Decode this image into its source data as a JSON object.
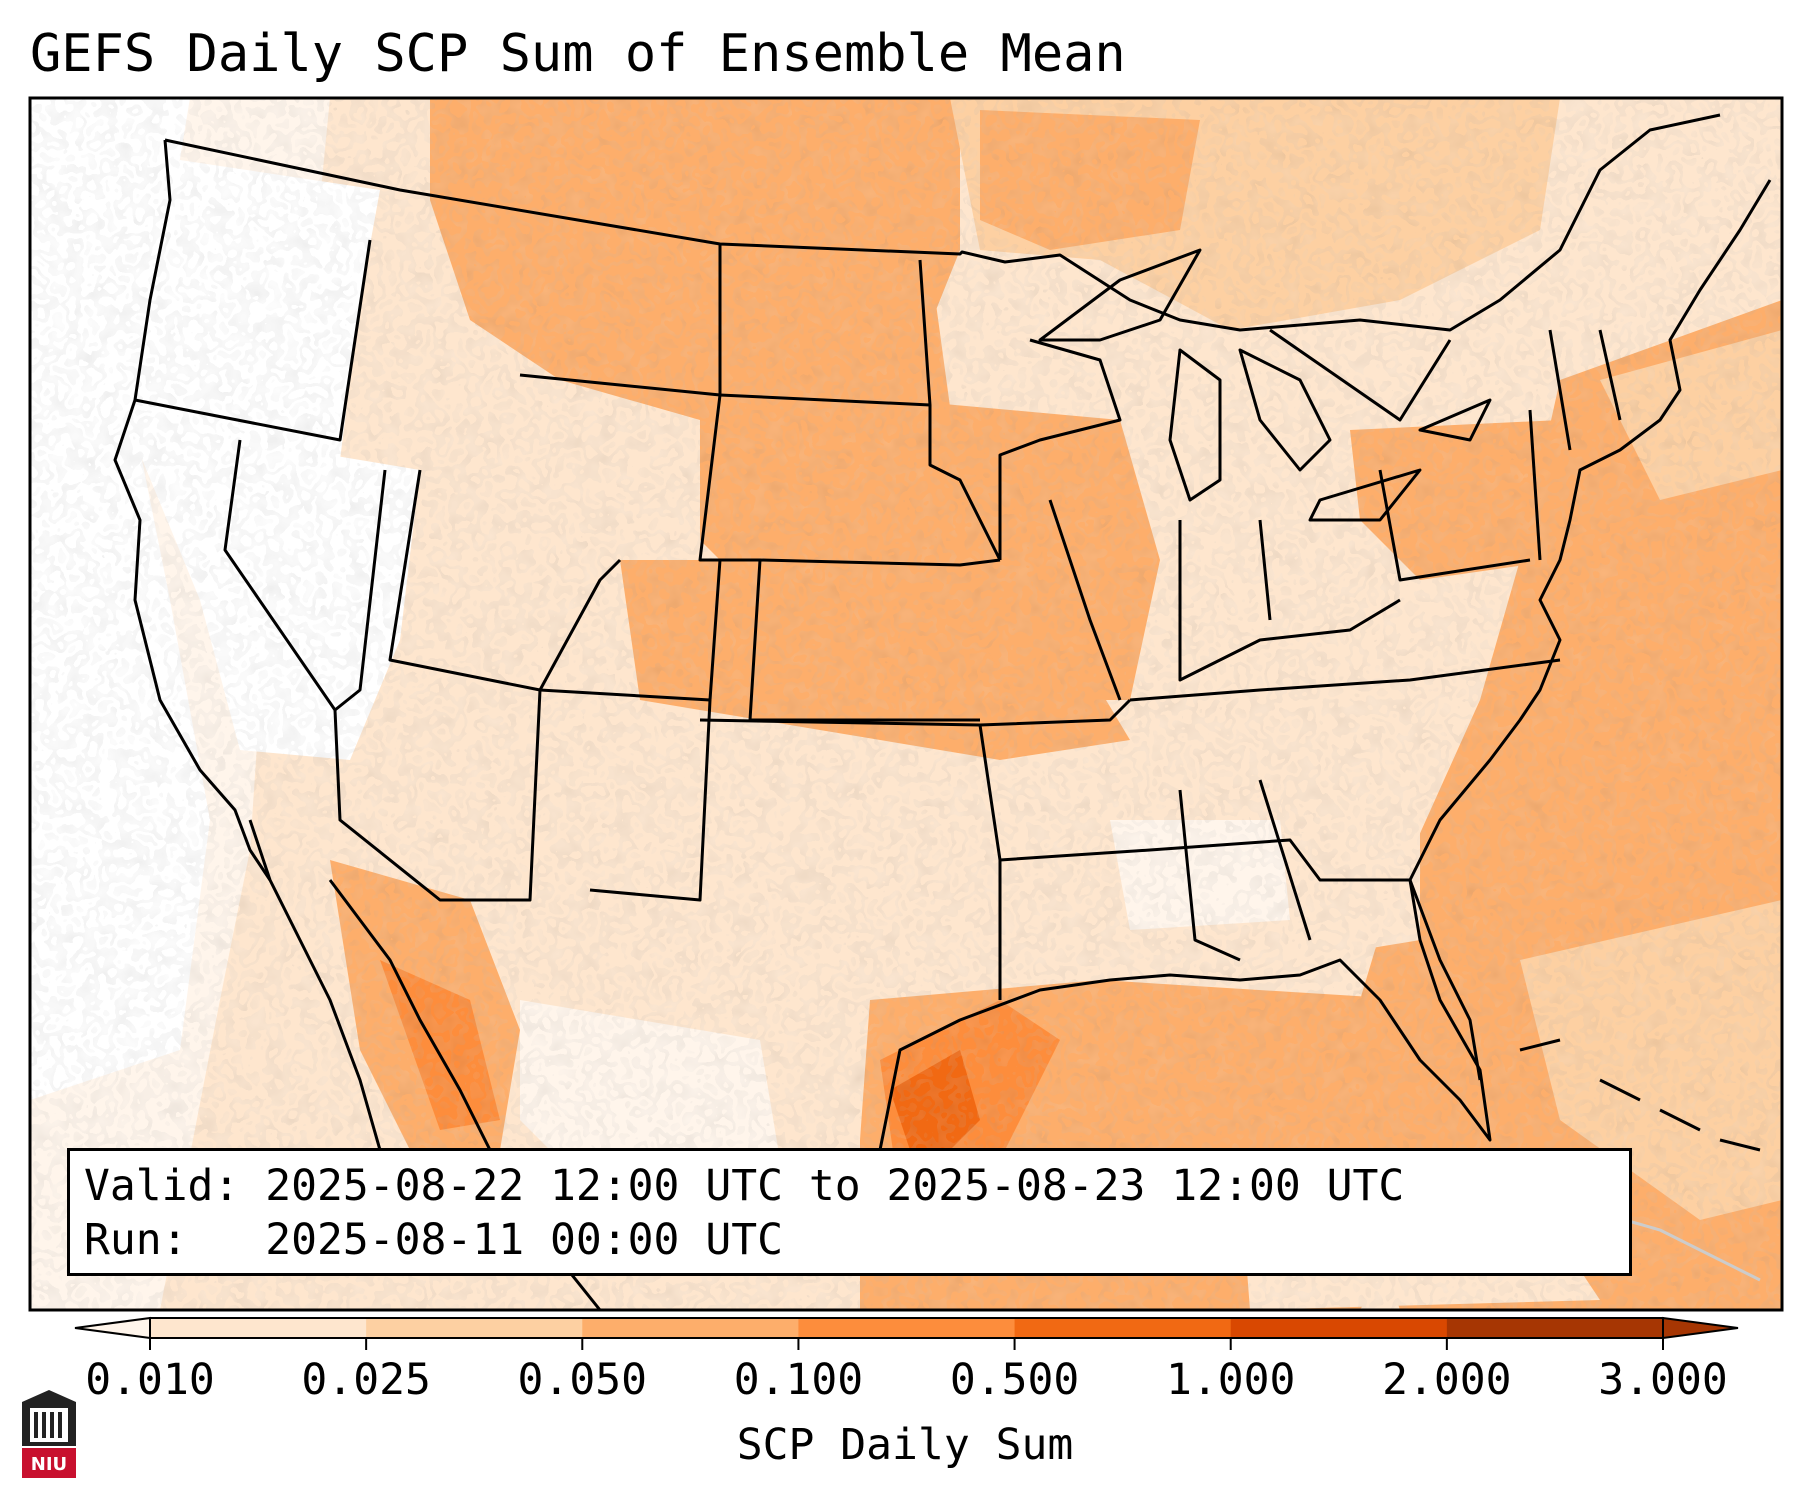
{
  "title": "GEFS Daily SCP Sum of Ensemble Mean",
  "info": {
    "valid_line": "Valid: 2025-08-22 12:00 UTC to 2025-08-23 12:00 UTC",
    "run_line": "Run:   2025-08-11 00:00 UTC"
  },
  "colorbar": {
    "label": "SCP Daily Sum",
    "ticks": [
      "0.010",
      "0.025",
      "0.050",
      "0.100",
      "0.500",
      "1.000",
      "2.000",
      "3.000"
    ],
    "colors": [
      "#fff5eb",
      "#fee6ce",
      "#fdd0a2",
      "#fdae6b",
      "#fd8d3c",
      "#f16913",
      "#d94801",
      "#a63603"
    ],
    "extend": "both"
  },
  "logo": {
    "text": "NIU",
    "color": "#c8102e"
  },
  "colors": {
    "lowest": "#ffffff",
    "background_ocean_east": "#fdae6b",
    "gulf_peak": "#f16913"
  }
}
